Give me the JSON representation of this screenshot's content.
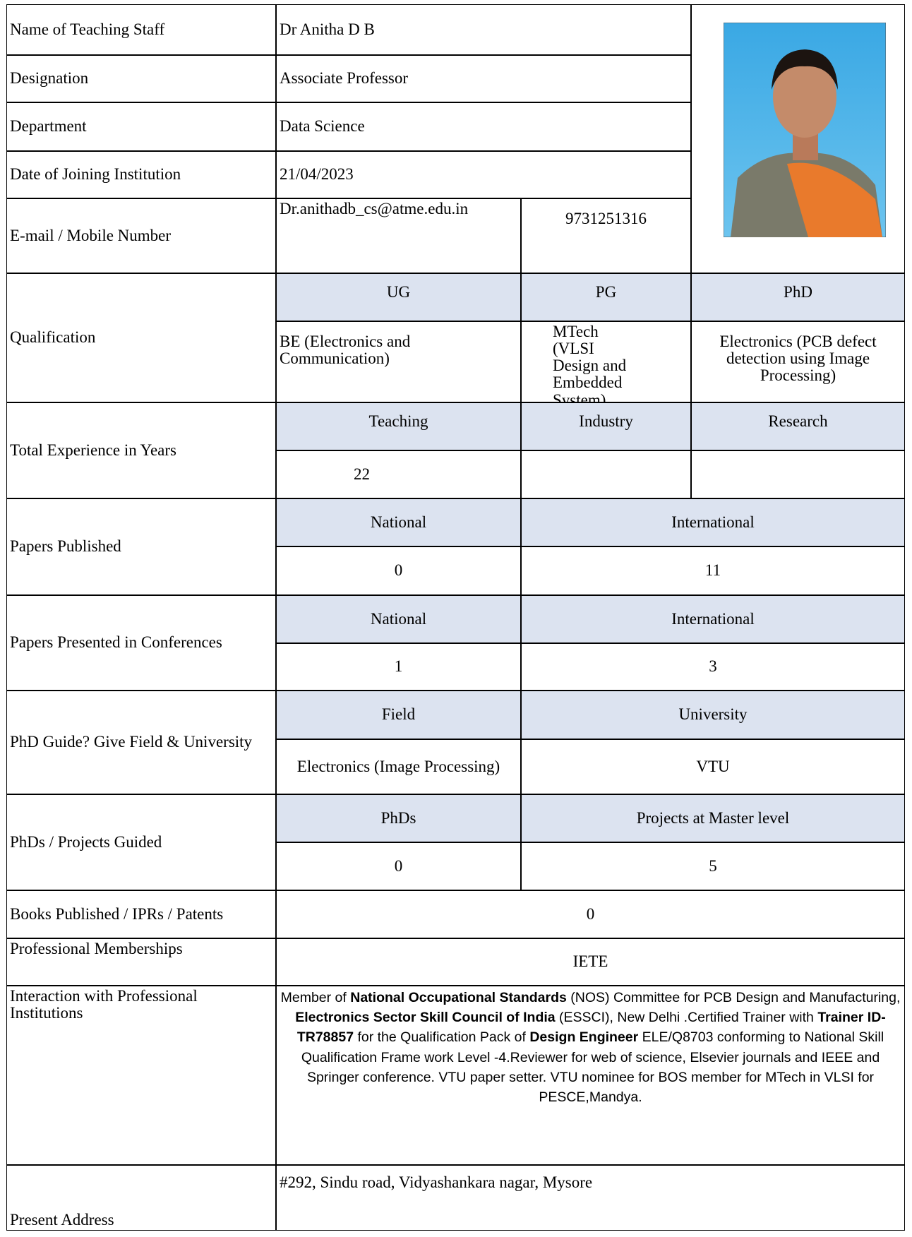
{
  "name": {
    "label": "Name of Teaching Staff",
    "value": "Dr Anitha D B"
  },
  "designation": {
    "label": "Designation",
    "value": "Associate Professor"
  },
  "department": {
    "label": "Department",
    "value": "Data Science"
  },
  "joining": {
    "label": "Date of Joining Institution",
    "value": "21/04/2023"
  },
  "contact": {
    "label": "E-mail / Mobile Number",
    "email": "Dr.anithadb_cs@atme.edu.in",
    "mobile": "9731251316"
  },
  "qualification": {
    "label": "Qualification",
    "headers": [
      "UG",
      "PG",
      "PhD"
    ],
    "values": [
      "BE (Electronics and Communication)",
      "MTech (VLSI Design and Embedded System)",
      "Electronics (PCB defect detection using Image Processing)"
    ]
  },
  "experience": {
    "label": "Total Experience in Years",
    "headers": [
      "Teaching",
      "Industry",
      "Research"
    ],
    "values": [
      22
    ]
  },
  "papers_published": {
    "label": "Papers Published",
    "headers": [
      "National",
      "International"
    ],
    "values": [
      0,
      11
    ]
  },
  "papers_presented": {
    "label": "Papers Presented in Conferences",
    "headers": [
      "National",
      "International"
    ],
    "values": [
      1,
      3
    ]
  },
  "phd_guide": {
    "label": "PhD Guide? Give Field & University",
    "headers": [
      "Field",
      "University"
    ],
    "values": [
      "Electronics (Image Processing)",
      "VTU"
    ]
  },
  "guided": {
    "label": "PhDs / Projects Guided",
    "headers": [
      "PhDs",
      "Projects at Master level"
    ],
    "values": [
      0,
      5
    ]
  },
  "books": {
    "label": "Books Published / IPRs / Patents",
    "value": 0
  },
  "memberships": {
    "label": "Professional Memberships",
    "value": "IETE"
  },
  "interaction": {
    "label": "Interaction with Professional Institutions",
    "parts": [
      {
        "text": "Member of ",
        "bold": false
      },
      {
        "text": "National Occupational Standards",
        "bold": true
      },
      {
        "text": " (NOS) Committee for PCB Design and Manufacturing, ",
        "bold": false
      },
      {
        "text": "Electronics Sector Skill Council of India",
        "bold": true
      },
      {
        "text": " (ESSCI), New Delhi .Certified Trainer with ",
        "bold": false
      },
      {
        "text": "Trainer ID- TR78857",
        "bold": true
      },
      {
        "text": " for the Qualification Pack of ",
        "bold": false
      },
      {
        "text": "Design Engineer",
        "bold": true
      },
      {
        "text": " ELE/Q8703 conforming to National Skill Qualification Frame work Level -4.Reviewer for web of science, Elsevier journals and IEEE and Springer conference. VTU paper setter. VTU nominee for BOS member for MTech in VLSI for PESCE,Mandya.",
        "bold": false
      }
    ]
  },
  "address": {
    "label": "Present Address",
    "value": "#292, Sindu road, Vidyashankara nagar, Mysore"
  }
}
